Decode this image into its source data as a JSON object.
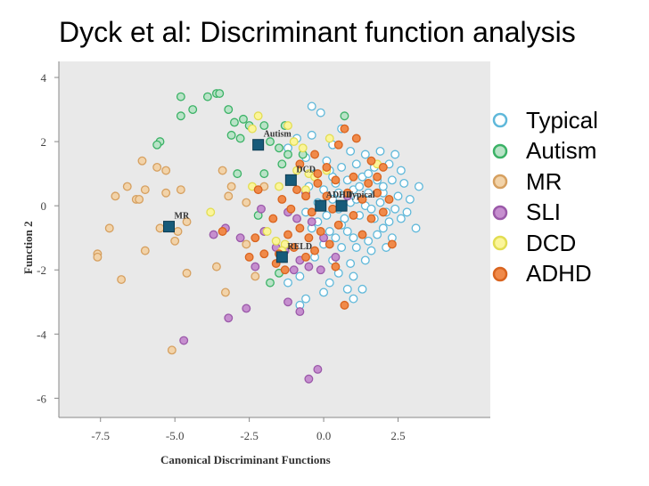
{
  "slide": {
    "title": "Dyck et al: Discriminant function analysis"
  },
  "chart_data": {
    "type": "scatter",
    "title": "Dyck et al: Discriminant function analysis",
    "xlabel": "Canonical Discriminant Functions",
    "ylabel": "Function 2",
    "xlim": [
      -8.9,
      5.6
    ],
    "ylim": [
      -6.6,
      4.5
    ],
    "xticks": [
      -7.5,
      -5.0,
      -2.5,
      0.0,
      2.5
    ],
    "xtick_labels": [
      "-7.5",
      "-5.0",
      "-2.5",
      "0.0",
      "2.5"
    ],
    "yticks": [
      4,
      2,
      0,
      -2,
      -4,
      -6
    ],
    "ytick_labels": [
      "4",
      "2",
      "0",
      "-2",
      "-4",
      "-6"
    ],
    "grid": false,
    "legend_position": "right",
    "series": [
      {
        "name": "Typical",
        "fill": "#ffffff",
        "stroke": "#5fb8da",
        "points": [
          [
            -0.4,
            3.1
          ],
          [
            -0.1,
            2.9
          ],
          [
            0.6,
            2.4
          ],
          [
            -0.9,
            2.1
          ],
          [
            -0.4,
            2.2
          ],
          [
            0.3,
            1.9
          ],
          [
            0.9,
            1.7
          ],
          [
            1.4,
            1.6
          ],
          [
            1.9,
            1.7
          ],
          [
            2.4,
            1.6
          ],
          [
            -1.2,
            1.8
          ],
          [
            -0.6,
            1.5
          ],
          [
            0.1,
            1.4
          ],
          [
            0.6,
            1.2
          ],
          [
            1.1,
            1.3
          ],
          [
            1.7,
            1.2
          ],
          [
            2.2,
            1.3
          ],
          [
            2.6,
            1.1
          ],
          [
            -0.3,
            1.0
          ],
          [
            0.3,
            0.9
          ],
          [
            0.8,
            0.8
          ],
          [
            1.3,
            0.9
          ],
          [
            1.8,
            0.8
          ],
          [
            2.3,
            0.8
          ],
          [
            2.7,
            0.7
          ],
          [
            3.2,
            0.6
          ],
          [
            -0.5,
            0.6
          ],
          [
            0.0,
            0.5
          ],
          [
            0.5,
            0.4
          ],
          [
            1.0,
            0.5
          ],
          [
            1.5,
            0.4
          ],
          [
            2.0,
            0.4
          ],
          [
            2.5,
            0.3
          ],
          [
            2.9,
            0.2
          ],
          [
            -0.2,
            0.1
          ],
          [
            0.3,
            0.2
          ],
          [
            0.9,
            0.1
          ],
          [
            1.4,
            0.0
          ],
          [
            1.9,
            0.1
          ],
          [
            2.4,
            -0.1
          ],
          [
            2.8,
            -0.2
          ],
          [
            -0.6,
            -0.2
          ],
          [
            0.1,
            -0.3
          ],
          [
            0.7,
            -0.4
          ],
          [
            1.2,
            -0.3
          ],
          [
            1.7,
            -0.4
          ],
          [
            2.2,
            -0.5
          ],
          [
            2.6,
            -0.4
          ],
          [
            3.1,
            -0.7
          ],
          [
            -0.4,
            -0.7
          ],
          [
            0.2,
            -0.8
          ],
          [
            0.8,
            -0.8
          ],
          [
            1.3,
            -0.9
          ],
          [
            1.8,
            -0.9
          ],
          [
            2.3,
            -1.0
          ],
          [
            0.0,
            -1.2
          ],
          [
            0.6,
            -1.3
          ],
          [
            1.1,
            -1.3
          ],
          [
            1.6,
            -1.4
          ],
          [
            2.1,
            -1.3
          ],
          [
            -0.3,
            -1.6
          ],
          [
            0.3,
            -1.7
          ],
          [
            0.9,
            -1.8
          ],
          [
            1.4,
            -1.7
          ],
          [
            0.5,
            -2.1
          ],
          [
            1.0,
            -2.2
          ],
          [
            -0.8,
            -2.2
          ],
          [
            0.2,
            -2.4
          ],
          [
            0.8,
            -2.6
          ],
          [
            1.3,
            -2.6
          ],
          [
            -1.2,
            -2.4
          ],
          [
            -0.6,
            -2.9
          ],
          [
            0.0,
            -2.7
          ],
          [
            1.0,
            -2.9
          ],
          [
            -0.8,
            -3.1
          ],
          [
            0.5,
            -0.1
          ],
          [
            1.1,
            0.2
          ],
          [
            1.6,
            -0.1
          ],
          [
            2.1,
            -0.2
          ],
          [
            0.4,
            0.7
          ],
          [
            1.2,
            0.6
          ],
          [
            2.0,
            0.6
          ],
          [
            0.2,
            1.1
          ],
          [
            1.5,
            1.0
          ],
          [
            -0.2,
            -0.5
          ],
          [
            0.6,
            -0.6
          ],
          [
            1.0,
            -1.0
          ],
          [
            1.5,
            -1.1
          ],
          [
            2.0,
            -0.7
          ],
          [
            0.4,
            -1.0
          ]
        ]
      },
      {
        "name": "Autism",
        "fill": "#b9e3c7",
        "stroke": "#3bb266",
        "points": [
          [
            -4.8,
            3.4
          ],
          [
            -3.9,
            3.4
          ],
          [
            -3.6,
            3.5
          ],
          [
            -3.5,
            3.5
          ],
          [
            -4.8,
            2.8
          ],
          [
            -4.4,
            3.0
          ],
          [
            -3.2,
            3.0
          ],
          [
            -3.0,
            2.6
          ],
          [
            -2.7,
            2.7
          ],
          [
            -2.5,
            2.5
          ],
          [
            -2.0,
            2.5
          ],
          [
            -1.3,
            2.5
          ],
          [
            0.7,
            2.8
          ],
          [
            -5.5,
            2.0
          ],
          [
            -5.6,
            1.9
          ],
          [
            -3.1,
            2.2
          ],
          [
            -2.8,
            2.1
          ],
          [
            -1.8,
            2.0
          ],
          [
            -1.5,
            1.8
          ],
          [
            -1.2,
            1.6
          ],
          [
            -0.7,
            1.6
          ],
          [
            -2.9,
            1.0
          ],
          [
            -2.0,
            1.0
          ],
          [
            -1.4,
            1.3
          ],
          [
            -2.2,
            -0.3
          ],
          [
            -1.8,
            -2.4
          ],
          [
            -1.5,
            -2.1
          ]
        ]
      },
      {
        "name": "MR",
        "fill": "#f2d3a9",
        "stroke": "#d6a060",
        "points": [
          [
            -6.1,
            1.4
          ],
          [
            -5.6,
            1.2
          ],
          [
            -5.3,
            1.1
          ],
          [
            -6.6,
            0.6
          ],
          [
            -6.0,
            0.5
          ],
          [
            -7.0,
            0.3
          ],
          [
            -6.3,
            0.2
          ],
          [
            -6.2,
            0.2
          ],
          [
            -4.8,
            0.5
          ],
          [
            -5.3,
            0.4
          ],
          [
            -7.2,
            -0.7
          ],
          [
            -5.5,
            -0.7
          ],
          [
            -4.9,
            -0.8
          ],
          [
            -7.6,
            -1.5
          ],
          [
            -7.6,
            -1.6
          ],
          [
            -6.0,
            -1.4
          ],
          [
            -5.0,
            -1.1
          ],
          [
            -6.8,
            -2.3
          ],
          [
            -4.6,
            -2.1
          ],
          [
            -3.3,
            -2.7
          ],
          [
            -3.6,
            -1.9
          ],
          [
            -5.1,
            -4.5
          ],
          [
            -4.6,
            -0.5
          ],
          [
            -3.2,
            0.3
          ],
          [
            -2.6,
            0.1
          ],
          [
            -2.0,
            0.6
          ],
          [
            -2.3,
            -2.2
          ],
          [
            -2.6,
            -1.2
          ],
          [
            -3.4,
            1.1
          ],
          [
            -3.1,
            0.6
          ]
        ]
      },
      {
        "name": "SLI",
        "fill": "#c68fcf",
        "stroke": "#9b59a9",
        "points": [
          [
            -2.1,
            -0.1
          ],
          [
            -1.2,
            -0.2
          ],
          [
            -0.9,
            -0.4
          ],
          [
            -0.4,
            -0.5
          ],
          [
            -3.3,
            -0.7
          ],
          [
            -3.7,
            -0.9
          ],
          [
            -2.8,
            -1.0
          ],
          [
            -2.0,
            -0.8
          ],
          [
            -1.6,
            -1.3
          ],
          [
            -1.3,
            -1.4
          ],
          [
            -0.8,
            -1.7
          ],
          [
            -0.5,
            -1.9
          ],
          [
            -0.1,
            -2.0
          ],
          [
            0.4,
            -1.6
          ],
          [
            -1.0,
            -2.0
          ],
          [
            -3.2,
            -3.5
          ],
          [
            -2.6,
            -3.2
          ],
          [
            -0.8,
            -3.3
          ],
          [
            -1.2,
            -3.0
          ],
          [
            -4.7,
            -4.2
          ],
          [
            -0.5,
            -5.4
          ],
          [
            -0.2,
            -5.1
          ],
          [
            0.0,
            -1.0
          ],
          [
            -0.6,
            0.4
          ],
          [
            -2.3,
            -1.9
          ],
          [
            0.8,
            0.3
          ]
        ]
      },
      {
        "name": "DCD",
        "fill": "#fbf59a",
        "stroke": "#e2dd52",
        "points": [
          [
            -2.2,
            2.8
          ],
          [
            -2.4,
            2.4
          ],
          [
            -1.2,
            2.5
          ],
          [
            0.2,
            2.1
          ],
          [
            -1.0,
            2.0
          ],
          [
            -0.7,
            1.8
          ],
          [
            -0.9,
            1.1
          ],
          [
            -0.5,
            1.0
          ],
          [
            -0.3,
            0.9
          ],
          [
            -1.5,
            0.6
          ],
          [
            -2.4,
            0.6
          ],
          [
            -3.8,
            -0.2
          ],
          [
            -1.9,
            -0.8
          ],
          [
            -1.6,
            -1.1
          ],
          [
            -1.3,
            -1.2
          ],
          [
            -1.4,
            -1.4
          ],
          [
            0.1,
            1.1
          ],
          [
            -0.6,
            0.5
          ],
          [
            1.8,
            1.3
          ]
        ]
      },
      {
        "name": "ADHD",
        "fill": "#f08a4a",
        "stroke": "#d9641f",
        "points": [
          [
            0.7,
            2.4
          ],
          [
            1.1,
            2.1
          ],
          [
            0.5,
            1.9
          ],
          [
            -0.3,
            1.6
          ],
          [
            -0.8,
            1.3
          ],
          [
            1.6,
            1.4
          ],
          [
            2.0,
            1.2
          ],
          [
            -0.2,
            1.0
          ],
          [
            0.4,
            0.8
          ],
          [
            1.0,
            0.9
          ],
          [
            1.5,
            0.7
          ],
          [
            -0.9,
            0.5
          ],
          [
            -0.6,
            0.3
          ],
          [
            0.1,
            0.3
          ],
          [
            0.8,
            0.4
          ],
          [
            1.3,
            0.2
          ],
          [
            1.8,
            0.4
          ],
          [
            2.2,
            0.2
          ],
          [
            -1.4,
            0.2
          ],
          [
            -1.1,
            -0.1
          ],
          [
            -0.4,
            -0.2
          ],
          [
            0.3,
            -0.1
          ],
          [
            1.0,
            -0.3
          ],
          [
            1.6,
            -0.4
          ],
          [
            -1.7,
            -0.4
          ],
          [
            -0.8,
            -0.7
          ],
          [
            -0.1,
            -0.8
          ],
          [
            0.5,
            -0.6
          ],
          [
            -1.2,
            -0.9
          ],
          [
            -0.5,
            -1.0
          ],
          [
            1.3,
            -0.9
          ],
          [
            2.3,
            -1.2
          ],
          [
            -1.0,
            -1.3
          ],
          [
            -0.3,
            -1.4
          ],
          [
            0.2,
            -1.2
          ],
          [
            -0.6,
            -1.6
          ],
          [
            0.4,
            -1.9
          ],
          [
            -1.3,
            -2.0
          ],
          [
            -1.6,
            -1.8
          ],
          [
            -2.0,
            -1.5
          ],
          [
            -2.3,
            -1.0
          ],
          [
            -3.4,
            -0.8
          ],
          [
            -2.5,
            -1.6
          ],
          [
            0.7,
            -3.1
          ],
          [
            -2.2,
            0.5
          ],
          [
            -1.5,
            -1.5
          ],
          [
            -0.2,
            0.7
          ],
          [
            1.8,
            0.9
          ],
          [
            0.1,
            1.2
          ],
          [
            2.0,
            -0.2
          ]
        ]
      }
    ],
    "centroids": [
      {
        "label": "Autism",
        "x": -2.2,
        "y": 1.9
      },
      {
        "label": "DCD",
        "x": -1.1,
        "y": 0.8
      },
      {
        "label": "ADHD",
        "x": -0.1,
        "y": 0.0
      },
      {
        "label": "Typical",
        "x": 0.6,
        "y": 0.0
      },
      {
        "label": "MR",
        "x": -5.2,
        "y": -0.65
      },
      {
        "label": "RELD",
        "x": -1.4,
        "y": -1.6
      }
    ],
    "centroid_color": "#175b7a"
  }
}
